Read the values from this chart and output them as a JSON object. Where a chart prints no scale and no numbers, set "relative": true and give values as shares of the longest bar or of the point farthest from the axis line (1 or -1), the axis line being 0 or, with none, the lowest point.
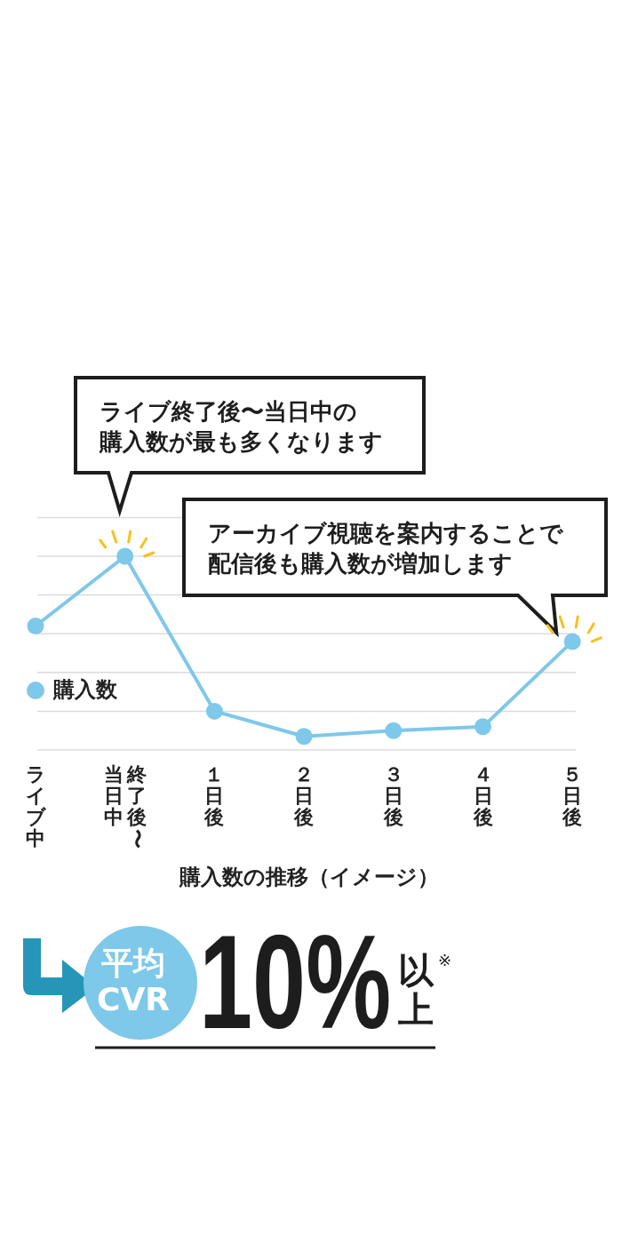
{
  "chart_data": {
    "type": "line",
    "title": "購入数の推移（イメージ）",
    "categories": [
      "ライブ中",
      "終了後〜当日中",
      "１日後",
      "２日後",
      "３日後",
      "４日後",
      "５日後"
    ],
    "series": [
      {
        "name": "購入数",
        "color": "#7ec8e9",
        "values": [
          0.64,
          1,
          0.2,
          0.07,
          0.1,
          0.12,
          0.56
        ]
      }
    ],
    "relative": true,
    "grid": true,
    "legend": "left",
    "marker": "circle",
    "annotations": [
      "ライブ終了後〜当日中の購入数が最も多くなります",
      "アーカイブ視聴を案内することで配信後も購入数が増加します",
      "平均CVR",
      "10%",
      "以上",
      "※"
    ]
  }
}
